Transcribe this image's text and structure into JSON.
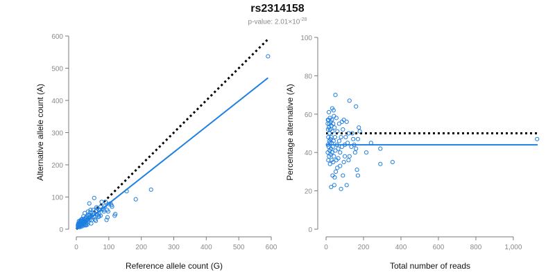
{
  "title": "rs2314158",
  "subtitle": {
    "prefix": "p-value: 2.01×10",
    "exponent": "-28"
  },
  "chart_data": [
    {
      "type": "scatter",
      "xlabel": "Reference allele count (G)",
      "ylabel": "Alternative allele count (A)",
      "xlim": [
        0,
        600
      ],
      "ylim": [
        0,
        600
      ],
      "x_ticks": [
        "0",
        "100",
        "200",
        "300",
        "400",
        "500",
        "600"
      ],
      "y_ticks": [
        "0",
        "100",
        "200",
        "300",
        "400",
        "500",
        "600"
      ],
      "grid": false,
      "point_color": "#1f7fe0",
      "reference_line": {
        "style": "dotted",
        "color": "#000000",
        "from": [
          0,
          0
        ],
        "to": [
          590,
          590
        ]
      },
      "fit_line": {
        "color": "#1f7fe0",
        "from": [
          0,
          0
        ],
        "to": [
          590,
          470
        ]
      },
      "points": [
        [
          590,
          537
        ],
        [
          230,
          123
        ],
        [
          183,
          93
        ],
        [
          155,
          118
        ],
        [
          120,
          47
        ],
        [
          118,
          42
        ],
        [
          108,
          75
        ],
        [
          105,
          80
        ],
        [
          100,
          78
        ],
        [
          98,
          55
        ],
        [
          95,
          60
        ],
        [
          93,
          29
        ],
        [
          90,
          85
        ],
        [
          88,
          72
        ],
        [
          85,
          55
        ],
        [
          80,
          62
        ],
        [
          78,
          85
        ],
        [
          75,
          70
        ],
        [
          72,
          60
        ],
        [
          70,
          48
        ],
        [
          68,
          38
        ],
        [
          65,
          65
        ],
        [
          60,
          55
        ],
        [
          58,
          30
        ],
        [
          55,
          97
        ],
        [
          55,
          48
        ],
        [
          52,
          60
        ],
        [
          50,
          44
        ],
        [
          48,
          35
        ],
        [
          46,
          18
        ],
        [
          45,
          40
        ],
        [
          44,
          60
        ],
        [
          42,
          52
        ],
        [
          40,
          80
        ],
        [
          40,
          28
        ],
        [
          38,
          45
        ],
        [
          36,
          22
        ],
        [
          35,
          32
        ],
        [
          34,
          15
        ],
        [
          33,
          40
        ],
        [
          32,
          28
        ],
        [
          30,
          20
        ],
        [
          30,
          12
        ],
        [
          28,
          35
        ],
        [
          27,
          25
        ],
        [
          26,
          18
        ],
        [
          25,
          30
        ],
        [
          24,
          12
        ],
        [
          23,
          22
        ],
        [
          22,
          15
        ],
        [
          21,
          28
        ],
        [
          20,
          18
        ],
        [
          19,
          10
        ],
        [
          18,
          24
        ],
        [
          17,
          14
        ],
        [
          16,
          20
        ],
        [
          15,
          8
        ],
        [
          15,
          30
        ],
        [
          14,
          12
        ],
        [
          13,
          18
        ],
        [
          12,
          10
        ],
        [
          12,
          22
        ],
        [
          11,
          14
        ],
        [
          10,
          9
        ],
        [
          10,
          16
        ],
        [
          9,
          20
        ],
        [
          9,
          6
        ],
        [
          8,
          12
        ],
        [
          8,
          25
        ],
        [
          7,
          9
        ],
        [
          7,
          15
        ],
        [
          6,
          10
        ],
        [
          6,
          18
        ],
        [
          5,
          8
        ],
        [
          5,
          13
        ],
        [
          14,
          27
        ],
        [
          18,
          32
        ],
        [
          22,
          40
        ],
        [
          26,
          50
        ],
        [
          30,
          36
        ],
        [
          34,
          30
        ],
        [
          36,
          55
        ],
        [
          42,
          45
        ],
        [
          47,
          28
        ],
        [
          62,
          47
        ],
        [
          66,
          45
        ],
        [
          75,
          42
        ],
        [
          84,
          60
        ],
        [
          96,
          37
        ],
        [
          110,
          70
        ],
        [
          54,
          38
        ],
        [
          60,
          26
        ],
        [
          70,
          40
        ],
        [
          62,
          68
        ],
        [
          28,
          14
        ],
        [
          24,
          24
        ],
        [
          20,
          26
        ],
        [
          16,
          16
        ],
        [
          12,
          26
        ]
      ]
    },
    {
      "type": "scatter",
      "xlabel": "Total number of reads",
      "ylabel": "Percentage alternative (A)",
      "xlim": [
        0,
        1130
      ],
      "ylim": [
        0,
        100
      ],
      "x_ticks": [
        "0",
        "200",
        "400",
        "600",
        "800",
        "1,000"
      ],
      "y_ticks": [
        "0",
        "20",
        "40",
        "60",
        "80",
        "100"
      ],
      "grid": false,
      "point_color": "#1f7fe0",
      "reference_line": {
        "style": "dotted",
        "color": "#000000",
        "y": 50
      },
      "fit_line": {
        "color": "#1f7fe0",
        "y": 44
      },
      "points": [
        [
          1127,
          47
        ],
        [
          355,
          35
        ],
        [
          290,
          34
        ],
        [
          290,
          42
        ],
        [
          240,
          45
        ],
        [
          215,
          40
        ],
        [
          180,
          51
        ],
        [
          175,
          53
        ],
        [
          170,
          28
        ],
        [
          170,
          47
        ],
        [
          165,
          31
        ],
        [
          160,
          64
        ],
        [
          160,
          42
        ],
        [
          155,
          40
        ],
        [
          150,
          44
        ],
        [
          145,
          47
        ],
        [
          140,
          50
        ],
        [
          135,
          43
        ],
        [
          125,
          67
        ],
        [
          125,
          38
        ],
        [
          120,
          36
        ],
        [
          120,
          50
        ],
        [
          115,
          45
        ],
        [
          110,
          23
        ],
        [
          110,
          56
        ],
        [
          105,
          48
        ],
        [
          100,
          38
        ],
        [
          100,
          44
        ],
        [
          95,
          57
        ],
        [
          95,
          35
        ],
        [
          90,
          52
        ],
        [
          90,
          28
        ],
        [
          85,
          43
        ],
        [
          85,
          56
        ],
        [
          80,
          21
        ],
        [
          80,
          48
        ],
        [
          75,
          40
        ],
        [
          75,
          33
        ],
        [
          70,
          46
        ],
        [
          70,
          55
        ],
        [
          65,
          37
        ],
        [
          65,
          42
        ],
        [
          60,
          32
        ],
        [
          60,
          51
        ],
        [
          58,
          44
        ],
        [
          55,
          36
        ],
        [
          55,
          58
        ],
        [
          52,
          30
        ],
        [
          50,
          70
        ],
        [
          50,
          41
        ],
        [
          48,
          48
        ],
        [
          46,
          27
        ],
        [
          45,
          53
        ],
        [
          44,
          23
        ],
        [
          42,
          59
        ],
        [
          42,
          38
        ],
        [
          40,
          62
        ],
        [
          40,
          46
        ],
        [
          38,
          35
        ],
        [
          38,
          55
        ],
        [
          36,
          43
        ],
        [
          35,
          28
        ],
        [
          34,
          51
        ],
        [
          33,
          63
        ],
        [
          32,
          40
        ],
        [
          31,
          57
        ],
        [
          30,
          45
        ],
        [
          30,
          36
        ],
        [
          28,
          54
        ],
        [
          28,
          48
        ],
        [
          27,
          22
        ],
        [
          26,
          42
        ],
        [
          25,
          56
        ],
        [
          24,
          39
        ],
        [
          23,
          47
        ],
        [
          22,
          52
        ],
        [
          21,
          34
        ],
        [
          20,
          58
        ],
        [
          20,
          45
        ],
        [
          19,
          41
        ],
        [
          18,
          55
        ],
        [
          18,
          50
        ],
        [
          17,
          46
        ],
        [
          16,
          38
        ],
        [
          15,
          61
        ],
        [
          15,
          53
        ],
        [
          14,
          43
        ],
        [
          13,
          57
        ],
        [
          12,
          48
        ],
        [
          12,
          36
        ],
        [
          11,
          52
        ],
        [
          10,
          44
        ],
        [
          10,
          57
        ],
        [
          9,
          40
        ],
        [
          9,
          55
        ]
      ]
    }
  ]
}
